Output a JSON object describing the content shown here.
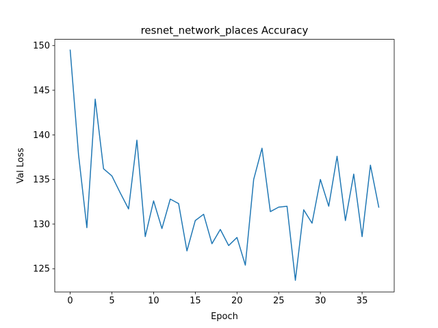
{
  "chart_data": {
    "type": "line",
    "title": "resnet_network_places Accuracy",
    "xlabel": "Epoch",
    "ylabel": "Val Loss",
    "xlim": [
      -1.85,
      38.85
    ],
    "ylim": [
      122.4,
      150.7
    ],
    "xticks": [
      0,
      5,
      10,
      15,
      20,
      25,
      30,
      35
    ],
    "yticks": [
      125,
      130,
      135,
      140,
      145,
      150
    ],
    "grid": false,
    "legend": "none",
    "series": [
      {
        "color": "#1f77b4",
        "x": [
          0,
          1,
          2,
          3,
          4,
          5,
          6,
          7,
          8,
          9,
          10,
          11,
          12,
          13,
          14,
          15,
          16,
          17,
          18,
          19,
          20,
          21,
          22,
          23,
          24,
          25,
          26,
          27,
          28,
          29,
          30,
          31,
          32,
          33,
          34,
          35,
          36,
          37
        ],
        "values": [
          149.5,
          137.8,
          129.6,
          144.0,
          136.2,
          135.4,
          133.5,
          131.7,
          139.4,
          128.6,
          132.6,
          129.5,
          132.8,
          132.3,
          127.0,
          130.4,
          131.1,
          127.8,
          129.4,
          127.6,
          128.5,
          125.4,
          135.0,
          138.5,
          131.4,
          131.9,
          132.0,
          123.7,
          131.6,
          130.1,
          135.0,
          132.0,
          137.6,
          130.4,
          135.6,
          128.6,
          136.6,
          131.9
        ]
      }
    ]
  }
}
